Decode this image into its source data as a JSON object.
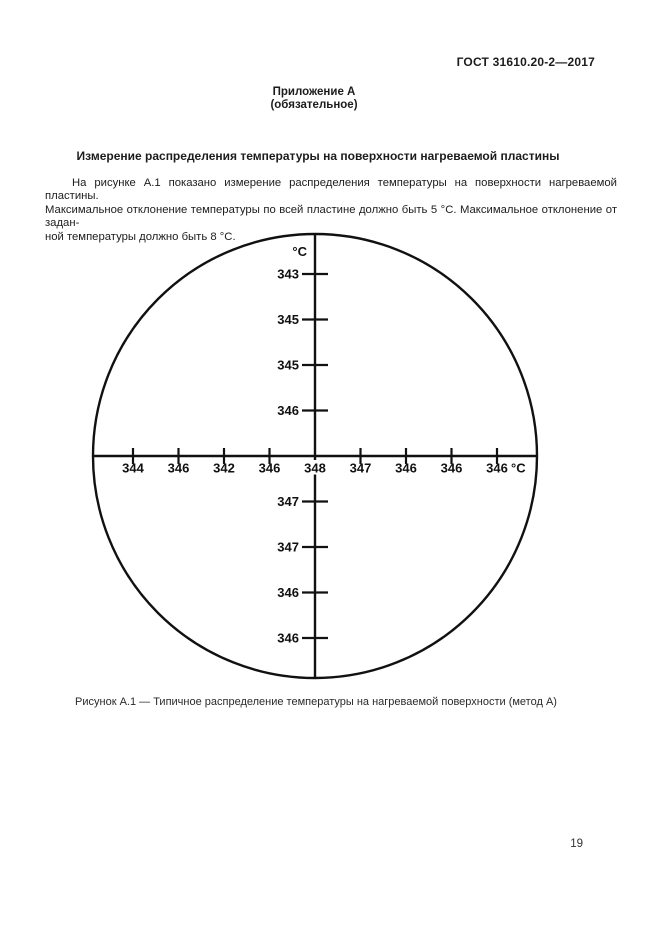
{
  "page": {
    "doc_code": "ГОСТ 31610.20-2—2017",
    "appendix": {
      "line1": "Приложение А",
      "line2": "(обязательное)"
    },
    "section_title": "Измерение распределения температуры на поверхности нагреваемой пластины",
    "paragraph_lines": [
      "На рисунке А.1 показано измерение распределения температуры на поверхности нагреваемой пластины.",
      "Максимальное отклонение температуры по всей пластине должно быть 5 °С. Максимальное отклонение от задан-",
      "ной температуры должно быть 8 °С."
    ],
    "figure_caption": "Рисунок А.1 — Типичное распределение температуры на нагреваемой поверхности (метод А)",
    "page_number": "19"
  },
  "chart_data": {
    "type": "diagram",
    "title": "Типичное распределение температуры на нагреваемой поверхности (метод А)",
    "shape": "circle-with-cross-axes",
    "unit_label": "°C",
    "ink_color": "#111111",
    "vertical_axis": {
      "top_unit_label": "°C",
      "above_center_top_to_bottom": [
        "343",
        "345",
        "345",
        "346"
      ],
      "below_center_top_to_bottom": [
        "347",
        "347",
        "346",
        "346"
      ]
    },
    "horizontal_axis": {
      "left_of_center_left_to_right": [
        "344",
        "346",
        "342",
        "346"
      ],
      "center_value": "348",
      "right_of_center_left_to_right": [
        "347",
        "346",
        "346",
        "346"
      ],
      "right_unit_label": "°C"
    }
  }
}
